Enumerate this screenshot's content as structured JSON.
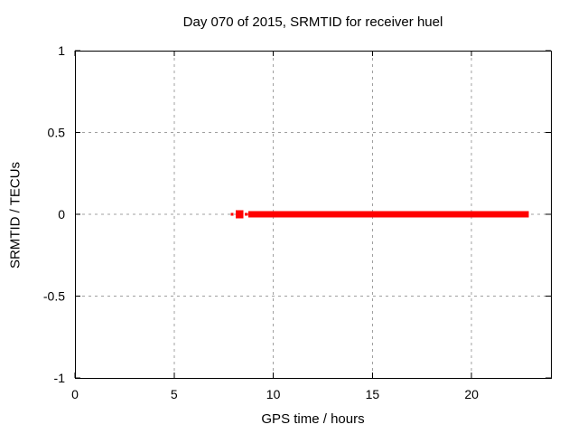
{
  "figure": {
    "background": "#ffffff"
  },
  "chart_data": {
    "type": "line",
    "title": "Day 070 of 2015, SRMTID for receiver huel",
    "xlabel": "GPS time / hours",
    "ylabel": "SRMTID / TECUs",
    "xlim": [
      0,
      24
    ],
    "ylim": [
      -1,
      1
    ],
    "xticks": [
      0,
      5,
      10,
      15,
      20
    ],
    "xtick_labels": [
      "0",
      "5",
      "10",
      "15",
      "20"
    ],
    "yticks": [
      -1,
      -0.5,
      0,
      0.5,
      1
    ],
    "ytick_labels": [
      "-1",
      "-0.5",
      "0",
      "0.5",
      "1"
    ],
    "grid": true,
    "legend": "none",
    "colors": {
      "series": "#ff0000",
      "grid": "#a0a0a0",
      "axis": "#000000",
      "text": "#000000",
      "background": "#ffffff"
    },
    "series": [
      {
        "name": "SRMTID",
        "color": "#ff0000",
        "style": "linespoints",
        "y_value": 0,
        "segments": [
          {
            "x1": 7.86,
            "x2": 7.99,
            "y": 0,
            "style": "line"
          },
          {
            "x1": 8.1,
            "x2": 8.49,
            "y": 0,
            "style": "marker"
          },
          {
            "x1": 8.56,
            "x2": 8.72,
            "y": 0,
            "style": "line"
          },
          {
            "x1": 8.74,
            "x2": 22.88,
            "y": 0,
            "style": "band"
          }
        ]
      }
    ]
  }
}
